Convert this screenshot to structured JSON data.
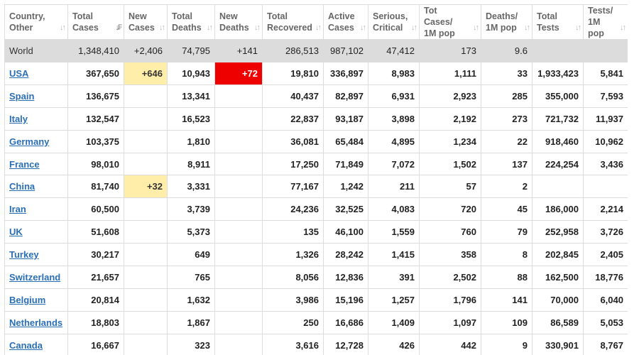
{
  "table": {
    "headers": [
      {
        "line1": "Country,",
        "line2": "Other",
        "sort": "↓↑",
        "active": false
      },
      {
        "line1": "Total",
        "line2": "Cases",
        "sort": "↓₣",
        "active": true
      },
      {
        "line1": "New",
        "line2": "Cases",
        "sort": "↓↑",
        "active": false
      },
      {
        "line1": "Total",
        "line2": "Deaths",
        "sort": "↓↑",
        "active": false
      },
      {
        "line1": "New",
        "line2": "Deaths",
        "sort": "↓↑",
        "active": false
      },
      {
        "line1": "Total",
        "line2": "Recovered",
        "sort": "↓↑",
        "active": false
      },
      {
        "line1": "Active",
        "line2": "Cases",
        "sort": "↓↑",
        "active": false
      },
      {
        "line1": "Serious,",
        "line2": "Critical",
        "sort": "↓↑",
        "active": false
      },
      {
        "line1": "Tot Cases/",
        "line2": "1M pop",
        "sort": "↓↑",
        "active": false
      },
      {
        "line1": "Deaths/",
        "line2": "1M pop",
        "sort": "↓↑",
        "active": false
      },
      {
        "line1": "Total",
        "line2": "Tests",
        "sort": "↓↑",
        "active": false
      },
      {
        "line1": "Tests/",
        "line2": "1M pop",
        "sort": "↓↑",
        "active": false
      }
    ],
    "world": [
      "World",
      "1,348,410",
      "+2,406",
      "74,795",
      "+141",
      "286,513",
      "987,102",
      "47,412",
      "173",
      "9.6",
      "",
      ""
    ],
    "rows": [
      {
        "cells": [
          "USA",
          "367,650",
          "+646",
          "10,943",
          "+72",
          "19,810",
          "336,897",
          "8,983",
          "1,111",
          "33",
          "1,933,423",
          "5,841"
        ],
        "new_cases_hl": true,
        "new_deaths_hl": true
      },
      {
        "cells": [
          "Spain",
          "136,675",
          "",
          "13,341",
          "",
          "40,437",
          "82,897",
          "6,931",
          "2,923",
          "285",
          "355,000",
          "7,593"
        ],
        "new_cases_hl": false,
        "new_deaths_hl": false
      },
      {
        "cells": [
          "Italy",
          "132,547",
          "",
          "16,523",
          "",
          "22,837",
          "93,187",
          "3,898",
          "2,192",
          "273",
          "721,732",
          "11,937"
        ],
        "new_cases_hl": false,
        "new_deaths_hl": false
      },
      {
        "cells": [
          "Germany",
          "103,375",
          "",
          "1,810",
          "",
          "36,081",
          "65,484",
          "4,895",
          "1,234",
          "22",
          "918,460",
          "10,962"
        ],
        "new_cases_hl": false,
        "new_deaths_hl": false
      },
      {
        "cells": [
          "France",
          "98,010",
          "",
          "8,911",
          "",
          "17,250",
          "71,849",
          "7,072",
          "1,502",
          "137",
          "224,254",
          "3,436"
        ],
        "new_cases_hl": false,
        "new_deaths_hl": false
      },
      {
        "cells": [
          "China",
          "81,740",
          "+32",
          "3,331",
          "",
          "77,167",
          "1,242",
          "211",
          "57",
          "2",
          "",
          ""
        ],
        "new_cases_hl": true,
        "new_deaths_hl": false
      },
      {
        "cells": [
          "Iran",
          "60,500",
          "",
          "3,739",
          "",
          "24,236",
          "32,525",
          "4,083",
          "720",
          "45",
          "186,000",
          "2,214"
        ],
        "new_cases_hl": false,
        "new_deaths_hl": false
      },
      {
        "cells": [
          "UK",
          "51,608",
          "",
          "5,373",
          "",
          "135",
          "46,100",
          "1,559",
          "760",
          "79",
          "252,958",
          "3,726"
        ],
        "new_cases_hl": false,
        "new_deaths_hl": false
      },
      {
        "cells": [
          "Turkey",
          "30,217",
          "",
          "649",
          "",
          "1,326",
          "28,242",
          "1,415",
          "358",
          "8",
          "202,845",
          "2,405"
        ],
        "new_cases_hl": false,
        "new_deaths_hl": false
      },
      {
        "cells": [
          "Switzerland",
          "21,657",
          "",
          "765",
          "",
          "8,056",
          "12,836",
          "391",
          "2,502",
          "88",
          "162,500",
          "18,776"
        ],
        "new_cases_hl": false,
        "new_deaths_hl": false
      },
      {
        "cells": [
          "Belgium",
          "20,814",
          "",
          "1,632",
          "",
          "3,986",
          "15,196",
          "1,257",
          "1,796",
          "141",
          "70,000",
          "6,040"
        ],
        "new_cases_hl": false,
        "new_deaths_hl": false
      },
      {
        "cells": [
          "Netherlands",
          "18,803",
          "",
          "1,867",
          "",
          "250",
          "16,686",
          "1,409",
          "1,097",
          "109",
          "86,589",
          "5,053"
        ],
        "new_cases_hl": false,
        "new_deaths_hl": false
      },
      {
        "cells": [
          "Canada",
          "16,667",
          "",
          "323",
          "",
          "3,616",
          "12,728",
          "426",
          "442",
          "9",
          "330,901",
          "8,767"
        ],
        "new_cases_hl": false,
        "new_deaths_hl": false
      }
    ]
  },
  "colors": {
    "header_text": "#666666",
    "link": "#2a6fb5",
    "world_row_bg": "#dcdcdc",
    "new_cases_highlight": "#ffeeaa",
    "new_deaths_highlight": "#ee0000"
  }
}
